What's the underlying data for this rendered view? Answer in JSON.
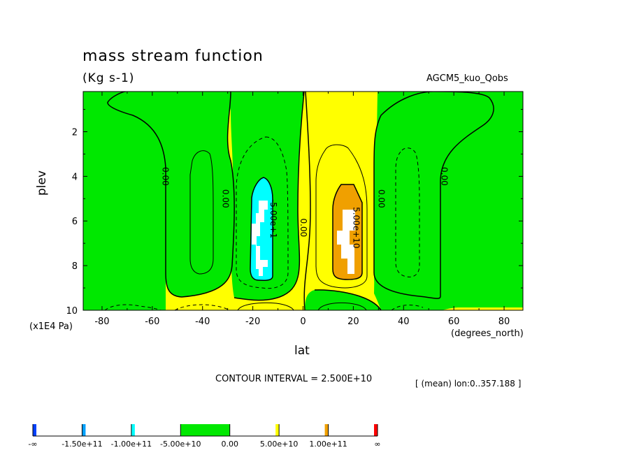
{
  "header": {
    "title": "mass stream function",
    "units": "(Kg s-1)",
    "dataset": "AGCM5_kuo_Qobs"
  },
  "footer": {
    "contour_interval": "CONTOUR INTERVAL = 2.500E+10",
    "subset": "[ (mean) lon:0..357.188 ]"
  },
  "colors": {
    "green": "#00e800",
    "yellow": "#ffff00",
    "orange": "#f0a000",
    "cyan": "#00ffff",
    "white": "#ffffff",
    "dark_blue": "#0040ff",
    "mid_blue": "#00a0ff",
    "red": "#ff0000"
  },
  "chart_data": {
    "type": "heatmap",
    "title": "mass stream function",
    "xlabel": "lat",
    "xunits": "(degrees_north)",
    "ylabel": "plev",
    "yunits": "(x1E4 Pa)",
    "xlim": [
      -87.5,
      87.5
    ],
    "ylim": [
      10,
      0.2
    ],
    "x_ticks": [
      -80,
      -60,
      -40,
      -20,
      0,
      20,
      40,
      60,
      80
    ],
    "x_tick_labels": [
      "-80",
      "-60",
      "-40",
      "-20",
      "0",
      "20",
      "40",
      "60",
      "80"
    ],
    "y_ticks": [
      2,
      4,
      6,
      8,
      10
    ],
    "y_tick_labels": [
      "2",
      "4",
      "6",
      "8",
      "10"
    ],
    "contour_labels": [
      {
        "text": "0.00",
        "lat": -55,
        "plev": 4.0
      },
      {
        "text": "0.00",
        "lat": -31,
        "plev": 5.0
      },
      {
        "text": "-5.00e+1",
        "lat": -12,
        "plev": 5.9
      },
      {
        "text": "0.00",
        "lat": 0,
        "plev": 6.3
      },
      {
        "text": "5.00e+10",
        "lat": 21,
        "plev": 6.3
      },
      {
        "text": "0.00",
        "lat": 31,
        "plev": 5.0
      },
      {
        "text": "0.00",
        "lat": 56,
        "plev": 4.0
      }
    ],
    "colorbar": {
      "levels": [
        "-∞",
        "-1.50e+11",
        "-1.00e+11",
        "-5.00e+10",
        "0.00",
        "5.00e+10",
        "1.00e+11",
        "∞"
      ]
    }
  }
}
